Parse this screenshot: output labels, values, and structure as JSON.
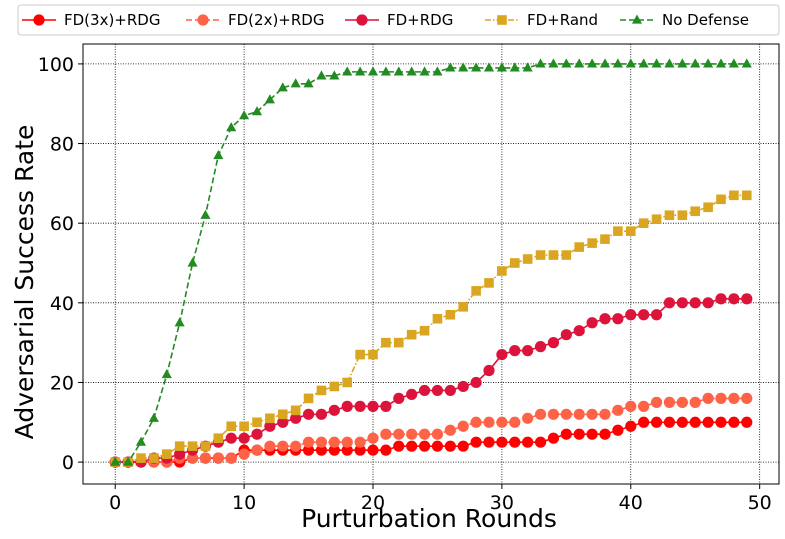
{
  "chart_data": {
    "type": "line",
    "title": "",
    "xlabel": "Purturbation Rounds",
    "ylabel": "Adversarial Success Rate",
    "xlim": [
      -2.5,
      51.5
    ],
    "ylim": [
      -5.5,
      105
    ],
    "xticks": [
      0,
      10,
      20,
      30,
      40,
      50
    ],
    "yticks": [
      0,
      20,
      40,
      60,
      80,
      100
    ],
    "grid": true,
    "legend_position": "top",
    "x": [
      0,
      1,
      2,
      3,
      4,
      5,
      6,
      7,
      8,
      9,
      10,
      11,
      12,
      13,
      14,
      15,
      16,
      17,
      18,
      19,
      20,
      21,
      22,
      23,
      24,
      25,
      26,
      27,
      28,
      29,
      30,
      31,
      32,
      33,
      34,
      35,
      36,
      37,
      38,
      39,
      40,
      41,
      42,
      43,
      44,
      45,
      46,
      47,
      48,
      49
    ],
    "series": [
      {
        "name": "FD(3x)+RDG",
        "color": "#ff0000",
        "marker": "circle",
        "line_style": "solid",
        "values": [
          0,
          0,
          0,
          0,
          0,
          0,
          1,
          1,
          1,
          1,
          3,
          3,
          3,
          3,
          3,
          3,
          3,
          3,
          3,
          3,
          3,
          3,
          4,
          4,
          4,
          4,
          4,
          4,
          5,
          5,
          5,
          5,
          5,
          5,
          6,
          7,
          7,
          7,
          7,
          8,
          9,
          10,
          10,
          10,
          10,
          10,
          10,
          10,
          10,
          10
        ]
      },
      {
        "name": "FD(2x)+RDG",
        "color": "#ff6347",
        "marker": "circle",
        "line_style": "dashed",
        "values": [
          0,
          0,
          0,
          0,
          0,
          1,
          1,
          1,
          1,
          1,
          2,
          3,
          4,
          4,
          4,
          5,
          5,
          5,
          5,
          5,
          6,
          7,
          7,
          7,
          7,
          7,
          8,
          9,
          10,
          10,
          10,
          10,
          11,
          12,
          12,
          12,
          12,
          12,
          12,
          13,
          14,
          14,
          15,
          15,
          15,
          15,
          16,
          16,
          16,
          16
        ]
      },
      {
        "name": "FD+RDG",
        "color": "#dc143c",
        "marker": "circle",
        "line_style": "solid",
        "values": [
          0,
          0,
          0,
          1,
          1,
          2,
          3,
          4,
          5,
          6,
          6,
          7,
          9,
          10,
          11,
          12,
          12,
          13,
          14,
          14,
          14,
          14,
          16,
          17,
          18,
          18,
          18,
          19,
          20,
          23,
          27,
          28,
          28,
          29,
          30,
          32,
          33,
          35,
          36,
          36,
          37,
          37,
          37,
          40,
          40,
          40,
          40,
          41,
          41,
          41
        ]
      },
      {
        "name": "FD+Rand",
        "color": "#daa520",
        "marker": "square",
        "line_style": "dashdot",
        "values": [
          0,
          0,
          1,
          1,
          2,
          4,
          4,
          4,
          6,
          9,
          9,
          10,
          11,
          12,
          13,
          16,
          18,
          19,
          20,
          27,
          27,
          30,
          30,
          32,
          33,
          36,
          37,
          39,
          43,
          45,
          48,
          50,
          51,
          52,
          52,
          52,
          54,
          55,
          56,
          58,
          58,
          60,
          61,
          62,
          62,
          63,
          64,
          66,
          67,
          67
        ]
      },
      {
        "name": "No Defense",
        "color": "#228b22",
        "marker": "triangle",
        "line_style": "dashed",
        "values": [
          0,
          0,
          5,
          11,
          22,
          35,
          50,
          62,
          77,
          84,
          87,
          88,
          91,
          94,
          95,
          95,
          97,
          97,
          98,
          98,
          98,
          98,
          98,
          98,
          98,
          98,
          99,
          99,
          99,
          99,
          99,
          99,
          99,
          100,
          100,
          100,
          100,
          100,
          100,
          100,
          100,
          100,
          100,
          100,
          100,
          100,
          100,
          100,
          100,
          100
        ]
      }
    ]
  }
}
